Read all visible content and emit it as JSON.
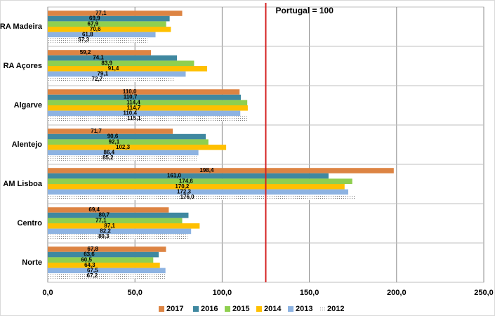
{
  "chart_data": {
    "type": "bar",
    "orientation": "horizontal",
    "categories": [
      "RA Madeira",
      "RA Açores",
      "Algarve",
      "Alentejo",
      "AM Lisboa",
      "Centro",
      "Norte"
    ],
    "series": [
      {
        "name": "2017",
        "color": "#dd8443",
        "values": [
          77.1,
          59.2,
          110.0,
          71.7,
          198.4,
          69.4,
          67.8
        ],
        "value_labels": [
          "77,1",
          "59,2",
          "110,0",
          "71,7",
          "198,4",
          "69,4",
          "67,8"
        ]
      },
      {
        "name": "2016",
        "color": "#3f88a0",
        "values": [
          69.9,
          74.1,
          110.7,
          90.6,
          161.0,
          80.7,
          63.6
        ],
        "value_labels": [
          "69,9",
          "74,1",
          "110,7",
          "90,6",
          "161,0",
          "80,7",
          "63,6"
        ]
      },
      {
        "name": "2015",
        "color": "#8fcf4f",
        "values": [
          67.9,
          83.9,
          114.4,
          92.1,
          174.6,
          77.1,
          60.5
        ],
        "value_labels": [
          "67,9",
          "83,9",
          "114,4",
          "92,1",
          "174,6",
          "77,1",
          "60,5"
        ]
      },
      {
        "name": "2014",
        "color": "#ffc000",
        "values": [
          70.6,
          91.4,
          114.7,
          102.3,
          170.2,
          87.1,
          64.3
        ],
        "value_labels": [
          "70,6",
          "91,4",
          "114,7",
          "102,3",
          "170,2",
          "87,1",
          "64,3"
        ]
      },
      {
        "name": "2013",
        "color": "#8db3e2",
        "values": [
          61.8,
          79.1,
          110.4,
          86.4,
          172.3,
          82.2,
          67.5
        ],
        "value_labels": [
          "61,8",
          "79,1",
          "110,4",
          "86,4",
          "172,3",
          "82,2",
          "67,5"
        ]
      },
      {
        "name": "2012",
        "color": "#8c8c8c",
        "pattern": "dotted",
        "values": [
          57.3,
          72.7,
          115.1,
          85.2,
          176.0,
          80.3,
          67.2
        ],
        "value_labels": [
          "57,3",
          "72,7",
          "115,1",
          "85,2",
          "176,0",
          "80,3",
          "67,2"
        ]
      }
    ],
    "xlim": [
      0,
      250
    ],
    "xticks": [
      {
        "value": 0,
        "label": "0,0"
      },
      {
        "value": 50,
        "label": "50,0"
      },
      {
        "value": 100,
        "label": "100,0"
      },
      {
        "value": 150,
        "label": "150,0"
      },
      {
        "value": 200,
        "label": "200,0"
      },
      {
        "value": 250,
        "label": "250,0"
      }
    ],
    "grid": true,
    "legend": "bottom",
    "reference_line": {
      "value": 125,
      "label": "Portugal = 100",
      "color": "#d42020"
    }
  }
}
